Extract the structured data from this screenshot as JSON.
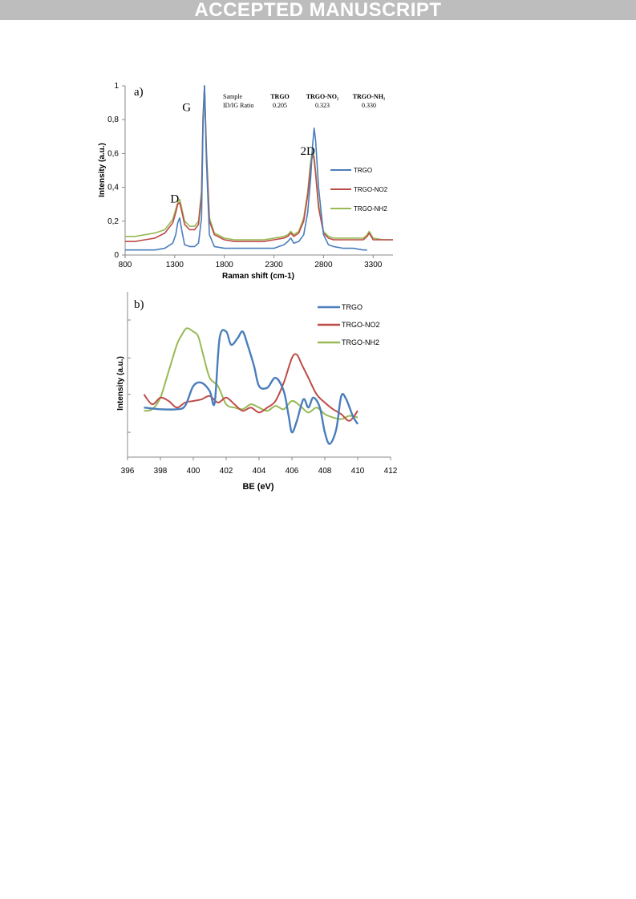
{
  "banner": "ACCEPTED MANUSCRIPT",
  "colors": {
    "TRGO": "#4a7ebb",
    "TRGO-NO2": "#be4b48",
    "TRGO-NH2": "#98b954"
  },
  "chart_data": [
    {
      "panel": "a)",
      "type": "line",
      "xlabel": "Raman shift (cm-1)",
      "ylabel": "Intensity (a.u.)",
      "xlim": [
        800,
        3500
      ],
      "ylim": [
        0,
        1
      ],
      "xticks": [
        "800",
        "1300",
        "1800",
        "2300",
        "2800",
        "3300"
      ],
      "yticks": [
        "0",
        "0,2",
        "0,4",
        "0,6",
        "0,8",
        "1"
      ],
      "grid": false,
      "legend": "right",
      "annotations": [
        {
          "text": "D",
          "x": 1300,
          "y": 0.34
        },
        {
          "text": "G",
          "x": 1420,
          "y": 0.88
        },
        {
          "text": "2D",
          "x": 2640,
          "y": 0.62
        }
      ],
      "table": {
        "headers": [
          "Sample",
          "TRGO",
          "TRGO-NO₂",
          "TRGO-NH₂"
        ],
        "row": [
          "ID/IG Ratio",
          "0.205",
          "0.323",
          "0.330"
        ]
      },
      "series": [
        {
          "name": "TRGO",
          "x": [
            800,
            900,
            1000,
            1100,
            1200,
            1280,
            1310,
            1330,
            1350,
            1370,
            1400,
            1450,
            1500,
            1540,
            1570,
            1585,
            1600,
            1620,
            1650,
            1700,
            1800,
            1900,
            2000,
            2100,
            2200,
            2300,
            2400,
            2440,
            2470,
            2500,
            2550,
            2600,
            2640,
            2670,
            2690,
            2705,
            2720,
            2750,
            2800,
            2850,
            2900,
            3000,
            3100,
            3200,
            3240
          ],
          "y": [
            0.03,
            0.03,
            0.03,
            0.03,
            0.04,
            0.07,
            0.12,
            0.19,
            0.22,
            0.15,
            0.06,
            0.05,
            0.05,
            0.07,
            0.22,
            0.75,
            1.0,
            0.55,
            0.12,
            0.05,
            0.04,
            0.04,
            0.04,
            0.04,
            0.04,
            0.04,
            0.06,
            0.08,
            0.1,
            0.07,
            0.08,
            0.12,
            0.25,
            0.45,
            0.65,
            0.75,
            0.68,
            0.4,
            0.12,
            0.06,
            0.05,
            0.04,
            0.04,
            0.03,
            0.03
          ]
        },
        {
          "name": "TRGO-NO2",
          "x": [
            800,
            900,
            1000,
            1100,
            1200,
            1280,
            1310,
            1330,
            1350,
            1370,
            1400,
            1450,
            1500,
            1540,
            1570,
            1585,
            1600,
            1620,
            1650,
            1700,
            1800,
            1900,
            2000,
            2100,
            2200,
            2300,
            2400,
            2440,
            2470,
            2500,
            2550,
            2600,
            2640,
            2670,
            2690,
            2705,
            2720,
            2750,
            2800,
            2850,
            2900,
            3000,
            3100,
            3200,
            3240,
            3260,
            3280,
            3300,
            3400,
            3500
          ],
          "y": [
            0.08,
            0.08,
            0.09,
            0.1,
            0.13,
            0.19,
            0.25,
            0.3,
            0.31,
            0.26,
            0.18,
            0.15,
            0.15,
            0.18,
            0.35,
            0.8,
            1.0,
            0.6,
            0.2,
            0.12,
            0.09,
            0.08,
            0.08,
            0.08,
            0.08,
            0.09,
            0.1,
            0.11,
            0.13,
            0.11,
            0.13,
            0.2,
            0.35,
            0.52,
            0.6,
            0.56,
            0.48,
            0.28,
            0.13,
            0.1,
            0.09,
            0.09,
            0.09,
            0.09,
            0.11,
            0.13,
            0.11,
            0.09,
            0.09,
            0.09
          ]
        },
        {
          "name": "TRGO-NH2",
          "x": [
            800,
            900,
            1000,
            1100,
            1200,
            1280,
            1310,
            1330,
            1350,
            1370,
            1400,
            1450,
            1500,
            1540,
            1570,
            1585,
            1600,
            1620,
            1650,
            1700,
            1800,
            1900,
            2000,
            2100,
            2200,
            2300,
            2400,
            2440,
            2470,
            2500,
            2550,
            2600,
            2640,
            2670,
            2690,
            2705,
            2720,
            2750,
            2800,
            2850,
            2900,
            3000,
            3100,
            3200,
            3240,
            3260,
            3280,
            3300,
            3400,
            3500
          ],
          "y": [
            0.11,
            0.11,
            0.12,
            0.13,
            0.15,
            0.21,
            0.27,
            0.31,
            0.33,
            0.28,
            0.2,
            0.17,
            0.17,
            0.2,
            0.38,
            0.82,
            1.0,
            0.62,
            0.22,
            0.13,
            0.1,
            0.09,
            0.09,
            0.09,
            0.09,
            0.1,
            0.11,
            0.12,
            0.14,
            0.12,
            0.14,
            0.22,
            0.37,
            0.55,
            0.63,
            0.58,
            0.5,
            0.3,
            0.14,
            0.11,
            0.1,
            0.1,
            0.1,
            0.1,
            0.12,
            0.14,
            0.12,
            0.1,
            0.09,
            0.09
          ]
        }
      ]
    },
    {
      "panel": "b)",
      "type": "line",
      "xlabel": "BE (eV)",
      "ylabel": "Intensity (a.u.)",
      "xlim": [
        396,
        412
      ],
      "ylim": [
        0,
        1
      ],
      "xticks": [
        "396",
        "398",
        "400",
        "402",
        "404",
        "406",
        "408",
        "410",
        "412"
      ],
      "grid": false,
      "legend": "top-right",
      "series": [
        {
          "name": "TRGO",
          "x": [
            397,
            398,
            399,
            399.5,
            400,
            400.5,
            401,
            401.3,
            401.6,
            402,
            402.3,
            402.7,
            403,
            403.3,
            403.7,
            404,
            404.5,
            405,
            405.5,
            405.8,
            406,
            406.3,
            406.7,
            407,
            407.3,
            407.7,
            408,
            408.3,
            408.7,
            409,
            409.3,
            409.7,
            410
          ],
          "y": [
            0.3,
            0.29,
            0.29,
            0.31,
            0.43,
            0.45,
            0.4,
            0.33,
            0.72,
            0.76,
            0.68,
            0.72,
            0.76,
            0.68,
            0.55,
            0.43,
            0.42,
            0.48,
            0.4,
            0.25,
            0.15,
            0.22,
            0.35,
            0.3,
            0.36,
            0.3,
            0.15,
            0.08,
            0.17,
            0.37,
            0.35,
            0.25,
            0.2
          ]
        },
        {
          "name": "TRGO-NO2",
          "x": [
            397,
            397.5,
            398,
            398.5,
            399,
            399.5,
            400,
            400.5,
            401,
            401.5,
            402,
            402.5,
            403,
            403.5,
            404,
            404.5,
            405,
            405.5,
            406,
            406.3,
            406.6,
            407,
            407.5,
            408,
            408.5,
            409,
            409.5,
            410
          ],
          "y": [
            0.38,
            0.32,
            0.36,
            0.34,
            0.3,
            0.33,
            0.34,
            0.35,
            0.37,
            0.33,
            0.36,
            0.32,
            0.28,
            0.3,
            0.27,
            0.3,
            0.34,
            0.45,
            0.6,
            0.62,
            0.56,
            0.48,
            0.38,
            0.33,
            0.29,
            0.26,
            0.22,
            0.28
          ]
        },
        {
          "name": "TRGO-NH2",
          "x": [
            397,
            397.5,
            398,
            398.5,
            399,
            399.3,
            399.6,
            400,
            400.3,
            400.6,
            401,
            401.5,
            402,
            402.5,
            403,
            403.5,
            404,
            404.5,
            405,
            405.5,
            406,
            406.5,
            407,
            407.5,
            408,
            408.5,
            409,
            409.5,
            410
          ],
          "y": [
            0.28,
            0.29,
            0.36,
            0.52,
            0.68,
            0.74,
            0.78,
            0.76,
            0.73,
            0.62,
            0.48,
            0.43,
            0.32,
            0.3,
            0.29,
            0.32,
            0.3,
            0.28,
            0.31,
            0.29,
            0.34,
            0.31,
            0.27,
            0.3,
            0.26,
            0.24,
            0.23,
            0.25,
            0.24
          ]
        }
      ]
    }
  ]
}
